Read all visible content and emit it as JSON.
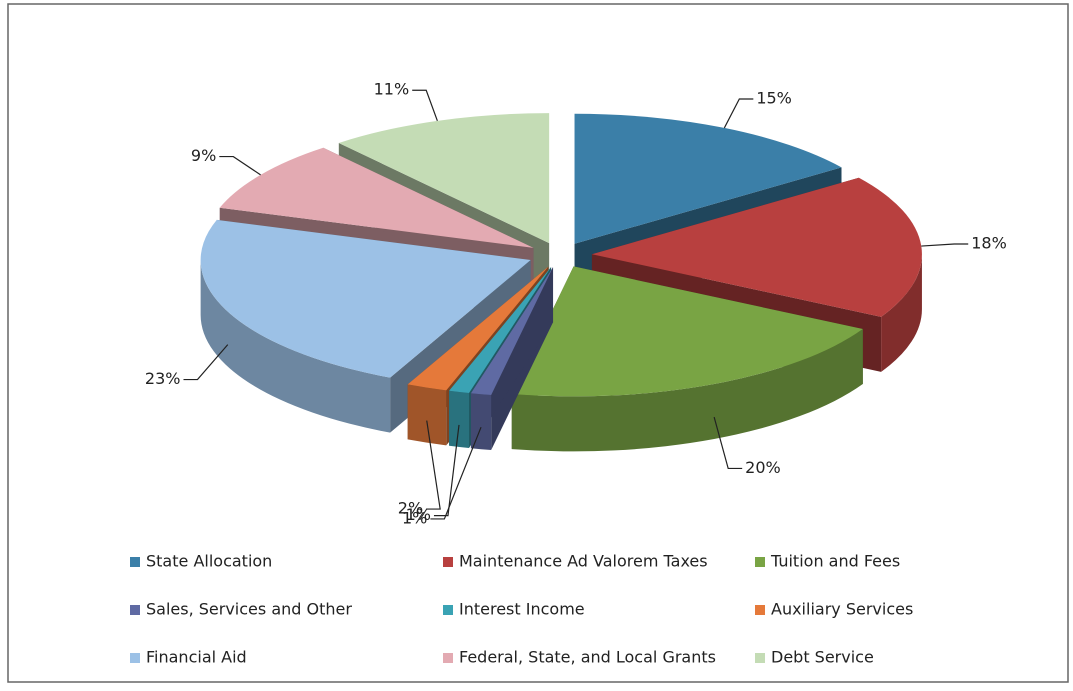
{
  "chart_data": {
    "type": "pie",
    "categories": [
      "State Allocation",
      "Maintenance Ad Valorem Taxes",
      "Tuition and Fees",
      "Sales, Services and Other",
      "Interest Income",
      "Auxiliary Services",
      "Financial Aid",
      "Federal, State, and Local Grants",
      "Debt Service"
    ],
    "values": [
      15,
      18,
      20,
      1,
      1,
      2,
      23,
      9,
      11
    ],
    "value_labels": [
      "15%",
      "18%",
      "20%",
      "1%",
      "1%",
      "2%",
      "23%",
      "9%",
      "11%"
    ],
    "colors": [
      "#3b7fa8",
      "#b8403f",
      "#79a444",
      "#5f6aa3",
      "#3aa3b4",
      "#e5793a",
      "#9cc1e6",
      "#e3aab2",
      "#c4dcb5"
    ],
    "legend": "bottom"
  }
}
